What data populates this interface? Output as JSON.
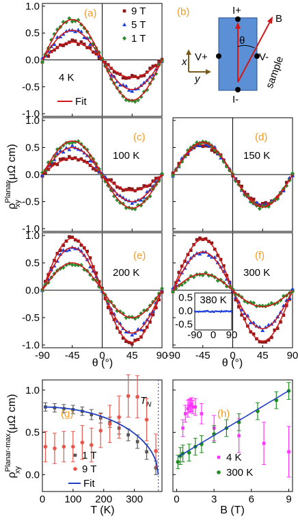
{
  "colors": {
    "B9": "#8b1a1a",
    "B5": "#1a3fe0",
    "B1": "#2e8b2e",
    "fit": "#d01818",
    "gray": "#555555",
    "salmon": "#e8554a",
    "blue_fit": "#1f3fbf",
    "magenta": "#ff33ff",
    "green": "#1e8c1e",
    "panel_label": "#f59a23",
    "sample": "#5b8fd6",
    "tn_line": "#5050ff"
  },
  "shared": {
    "x_ticks": [
      "-90",
      "-45",
      "0",
      "45",
      "90"
    ],
    "y_ticks": [
      "1.0",
      "0.5",
      "0.0",
      "-0.5",
      "-1.0"
    ],
    "x_label": "θ (°)",
    "y_label": "ρ",
    "y_label_sup": "Planar",
    "y_label_sub": "xy",
    "y_label_unit": "(μΩ cm)"
  },
  "diagram": {
    "label": "(b)",
    "I_plus": "I+",
    "I_minus": "I-",
    "V_plus": "V+",
    "V_minus": "V-",
    "B": "B",
    "theta": "θ",
    "sample": "sample",
    "x": "x",
    "y": "y"
  },
  "chart_data": [
    {
      "panel": "a",
      "type": "scatter",
      "label": "(a)",
      "temperature": "4 K",
      "xlim": [
        -90,
        90
      ],
      "ylim": [
        -1.05,
        1.05
      ],
      "series": [
        {
          "name": "9 T",
          "marker": "square",
          "color": "#8b1a1a",
          "amplitude": 0.33
        },
        {
          "name": "5 T",
          "marker": "triangle",
          "color": "#1a3fe0",
          "amplitude": 0.55
        },
        {
          "name": "1 T",
          "marker": "diamond",
          "color": "#2e8b2e",
          "amplitude": 0.75
        }
      ],
      "fit_label": "Fit"
    },
    {
      "panel": "c",
      "type": "scatter",
      "label": "(c)",
      "temperature": "100 K",
      "xlim": [
        -90,
        90
      ],
      "ylim": [
        -1.05,
        1.05
      ],
      "series": [
        {
          "name": "9 T",
          "amplitude": 0.3
        },
        {
          "name": "5 T",
          "amplitude": 0.5
        },
        {
          "name": "1 T",
          "amplitude": 0.62
        }
      ]
    },
    {
      "panel": "d",
      "type": "scatter",
      "label": "(d)",
      "temperature": "150 K",
      "xlim": [
        -90,
        90
      ],
      "ylim": [
        -1.05,
        1.05
      ],
      "series": [
        {
          "name": "9 T",
          "amplitude": 0.55
        },
        {
          "name": "5 T",
          "amplitude": 0.58
        },
        {
          "name": "1 T",
          "amplitude": 0.6
        }
      ]
    },
    {
      "panel": "e",
      "type": "scatter",
      "label": "(e)",
      "temperature": "200 K",
      "xlim": [
        -90,
        90
      ],
      "ylim": [
        -1.05,
        1.05
      ],
      "series": [
        {
          "name": "9 T",
          "amplitude": 0.95
        },
        {
          "name": "5 T",
          "amplitude": 0.78
        },
        {
          "name": "1 T",
          "amplitude": 0.5
        }
      ]
    },
    {
      "panel": "f",
      "type": "scatter",
      "label": "(f)",
      "temperature": "300 K",
      "xlim": [
        -90,
        90
      ],
      "ylim": [
        -1.05,
        1.05
      ],
      "series": [
        {
          "name": "9 T",
          "amplitude": 0.93
        },
        {
          "name": "5 T",
          "amplitude": 0.7
        },
        {
          "name": "1 T",
          "amplitude": 0.3
        }
      ],
      "inset": {
        "temperature": "380 K",
        "x_ticks": [
          "-90",
          "0",
          "90"
        ],
        "y_ticks": [
          "0.5",
          "0.0",
          "-0.5"
        ],
        "amplitude": 0.02
      }
    },
    {
      "panel": "g",
      "type": "scatter",
      "label": "(g)",
      "xlabel": "T (K)",
      "ylabel": "ρ",
      "ylabel_sup": "Planar-max.",
      "ylabel_sub": "xy",
      "ylabel_unit": "(μΩ cm)",
      "xlim": [
        0,
        390
      ],
      "ylim": [
        -0.2,
        1.12
      ],
      "x_ticks": [
        "0",
        "100",
        "200",
        "300"
      ],
      "y_ticks": [
        "1.0",
        "0.5",
        "0.0"
      ],
      "tn_label": "T",
      "tn_sub": "N",
      "tn": 378,
      "series": [
        {
          "name": "1 T",
          "marker": "square",
          "color": "#555555",
          "x": [
            10,
            40,
            70,
            100,
            130,
            160,
            190,
            220,
            250,
            280,
            310,
            340,
            370
          ],
          "y": [
            0.8,
            0.79,
            0.78,
            0.77,
            0.75,
            0.71,
            0.67,
            0.62,
            0.55,
            0.47,
            0.39,
            0.27,
            0.08
          ],
          "err": [
            0.05,
            0.05,
            0.05,
            0.05,
            0.05,
            0.06,
            0.06,
            0.06,
            0.07,
            0.07,
            0.08,
            0.09,
            0.08
          ]
        },
        {
          "name": "9 T",
          "marker": "circle",
          "color": "#e8554a",
          "x": [
            10,
            40,
            70,
            100,
            130,
            160,
            190,
            220,
            250,
            280,
            310,
            340,
            370
          ],
          "y": [
            0.33,
            0.31,
            0.33,
            0.33,
            0.38,
            0.35,
            0.52,
            0.6,
            0.68,
            0.93,
            0.92,
            0.65,
            0.28
          ],
          "err": [
            0.18,
            0.18,
            0.18,
            0.18,
            0.2,
            0.2,
            0.2,
            0.22,
            0.25,
            0.25,
            0.25,
            0.25,
            0.2
          ]
        }
      ],
      "fit": {
        "name": "Fit",
        "color": "#1f3fbf"
      }
    },
    {
      "panel": "h",
      "type": "scatter",
      "label": "(h)",
      "xlabel": "B (T)",
      "xlim": [
        -0.3,
        9.3
      ],
      "ylim": [
        -0.2,
        1.12
      ],
      "x_ticks": [
        "0",
        "3",
        "6",
        "9"
      ],
      "series": [
        {
          "name": "4 K",
          "marker": "square",
          "color": "#ff33ff",
          "x": [
            0.5,
            0.7,
            0.9,
            1.0,
            1.1,
            1.2,
            1.3,
            1.5,
            2.0,
            3.0,
            5.0,
            7.0,
            9.0
          ],
          "y": [
            0.55,
            0.72,
            0.78,
            0.81,
            0.82,
            0.83,
            0.8,
            0.8,
            0.72,
            0.55,
            0.46,
            0.37,
            0.27
          ],
          "err": [
            0.1,
            0.1,
            0.1,
            0.08,
            0.08,
            0.08,
            0.08,
            0.1,
            0.12,
            0.15,
            0.2,
            0.25,
            0.3
          ]
        },
        {
          "name": "300 K",
          "marker": "circle",
          "color": "#1e8c1e",
          "x": [
            0.1,
            0.3,
            0.5,
            1.0,
            1.5,
            2.0,
            3.0,
            4.0,
            5.0,
            6.5,
            8.0,
            9.0
          ],
          "y": [
            0.15,
            0.22,
            0.25,
            0.26,
            0.33,
            0.36,
            0.48,
            0.55,
            0.62,
            0.75,
            0.88,
            0.99
          ],
          "err": [
            0.08,
            0.1,
            0.1,
            0.1,
            0.1,
            0.1,
            0.1,
            0.1,
            0.1,
            0.1,
            0.1,
            0.1
          ]
        }
      ]
    }
  ]
}
